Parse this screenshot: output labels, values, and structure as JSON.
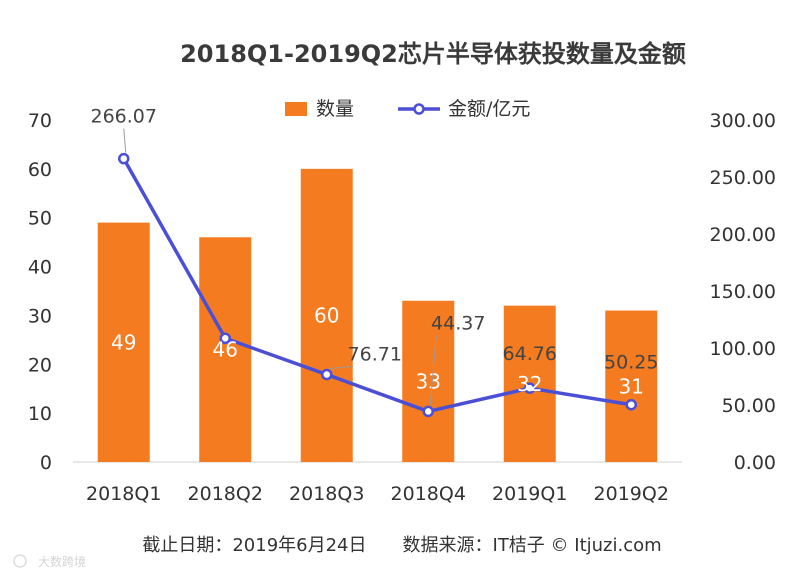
{
  "chart_data": {
    "type": "bar",
    "title": "2018Q1-2019Q2芯片半导体获投数量及金额",
    "categories": [
      "2018Q1",
      "2018Q2",
      "2018Q3",
      "2018Q4",
      "2019Q1",
      "2019Q2"
    ],
    "series": [
      {
        "name": "数量",
        "type": "bar",
        "axis": "left",
        "values": [
          49,
          46,
          60,
          33,
          32,
          31
        ],
        "labels": [
          "49",
          "46",
          "60",
          "33",
          "32",
          "31"
        ]
      },
      {
        "name": "金额/亿元",
        "type": "line",
        "axis": "right",
        "values": [
          266.07,
          108.5,
          76.71,
          44.37,
          64.76,
          50.25
        ],
        "labels": [
          "266.07",
          "",
          "76.71",
          "44.37",
          "64.76",
          "50.25"
        ]
      }
    ],
    "y_left": {
      "lim": [
        0,
        70
      ],
      "ticks": [
        "0",
        "10",
        "20",
        "30",
        "40",
        "50",
        "60",
        "70"
      ]
    },
    "y_right": {
      "lim": [
        0,
        300
      ],
      "ticks": [
        "0.00",
        "50.00",
        "100.00",
        "150.00",
        "200.00",
        "250.00",
        "300.00"
      ]
    },
    "legend_position": "top",
    "grid": false,
    "colors": {
      "bar": "#F47B20",
      "line": "#4B4FD6",
      "text": "#333333",
      "axis": "#D9D9D9"
    }
  },
  "footer": {
    "text": "截止日期：2019年6月24日　　数据来源：IT桔子 © Itjuzi.com",
    "watermark": "大数跨境"
  }
}
